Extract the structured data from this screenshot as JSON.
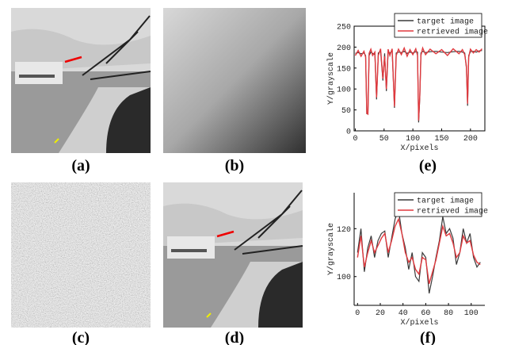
{
  "labels": [
    "(a)",
    "(b)",
    "(c)",
    "(d)",
    "(e)",
    "(f)"
  ],
  "chart_data": [
    {
      "type": "line",
      "xlabel": "X/pixels",
      "ylabel": "Y/grayscale",
      "x": [
        0,
        5,
        10,
        15,
        18,
        20,
        22,
        24,
        27,
        30,
        34,
        37,
        40,
        44,
        48,
        51,
        54,
        57,
        60,
        64,
        68,
        71,
        75,
        80,
        85,
        90,
        95,
        100,
        105,
        108,
        110,
        112,
        114,
        117,
        122,
        130,
        140,
        150,
        160,
        170,
        180,
        186,
        190,
        193,
        195,
        197,
        200,
        205,
        210,
        215,
        220
      ],
      "series": [
        {
          "name": "target image",
          "color": "#3a3a3a",
          "values": [
            185,
            187,
            184,
            186,
            180,
            40,
            45,
            180,
            188,
            185,
            182,
            75,
            186,
            190,
            120,
            185,
            95,
            188,
            186,
            190,
            55,
            186,
            188,
            187,
            190,
            185,
            188,
            186,
            189,
            188,
            20,
            80,
            186,
            190,
            187,
            189,
            190,
            188,
            187,
            189,
            190,
            188,
            186,
            150,
            60,
            180,
            189,
            190,
            188,
            191,
            192
          ]
        },
        {
          "name": "retrieved image",
          "color": "#e0393e",
          "values": [
            180,
            192,
            178,
            190,
            176,
            42,
            40,
            185,
            195,
            180,
            188,
            80,
            180,
            196,
            125,
            178,
            100,
            195,
            180,
            196,
            58,
            180,
            195,
            182,
            198,
            178,
            194,
            182,
            196,
            180,
            25,
            85,
            180,
            198,
            182,
            195,
            184,
            194,
            180,
            196,
            184,
            194,
            182,
            155,
            65,
            176,
            195,
            186,
            194,
            188,
            196
          ]
        }
      ],
      "xlim": [
        -2,
        225
      ],
      "xticks": [
        0,
        50,
        100,
        150,
        200
      ],
      "ylim": [
        0,
        250
      ],
      "yticks": [
        0,
        50,
        100,
        150,
        200,
        250
      ],
      "legend": "upper right",
      "frame": true
    },
    {
      "type": "line",
      "xlabel": "X/pixels",
      "ylabel": "Y/grayscale",
      "x": [
        0,
        3,
        6,
        9,
        12,
        15,
        18,
        21,
        24,
        27,
        30,
        33,
        36,
        39,
        42,
        45,
        48,
        51,
        54,
        57,
        60,
        63,
        66,
        69,
        72,
        75,
        78,
        81,
        84,
        87,
        90,
        93,
        96,
        99,
        102,
        105,
        108
      ],
      "series": [
        {
          "name": "target image",
          "color": "#3a3a3a",
          "values": [
            110,
            120,
            102,
            112,
            117,
            108,
            115,
            118,
            119,
            108,
            116,
            124,
            128,
            118,
            112,
            103,
            110,
            100,
            98,
            110,
            108,
            93,
            100,
            108,
            115,
            125,
            118,
            120,
            116,
            105,
            110,
            120,
            114,
            118,
            108,
            104,
            106
          ]
        },
        {
          "name": "retrieved image",
          "color": "#e0393e",
          "values": [
            108,
            117,
            104,
            110,
            115,
            110,
            113,
            116,
            118,
            110,
            115,
            121,
            124,
            118,
            110,
            106,
            108,
            103,
            101,
            108,
            107,
            97,
            102,
            107,
            114,
            121,
            117,
            118,
            114,
            108,
            110,
            117,
            114,
            115,
            109,
            106,
            105
          ]
        }
      ],
      "xlim": [
        -3,
        112
      ],
      "xticks": [
        0,
        20,
        40,
        60,
        80,
        100
      ],
      "ylim": [
        88,
        135
      ],
      "yticks": [
        100,
        120
      ],
      "legend": "upper right",
      "frame": false
    }
  ]
}
